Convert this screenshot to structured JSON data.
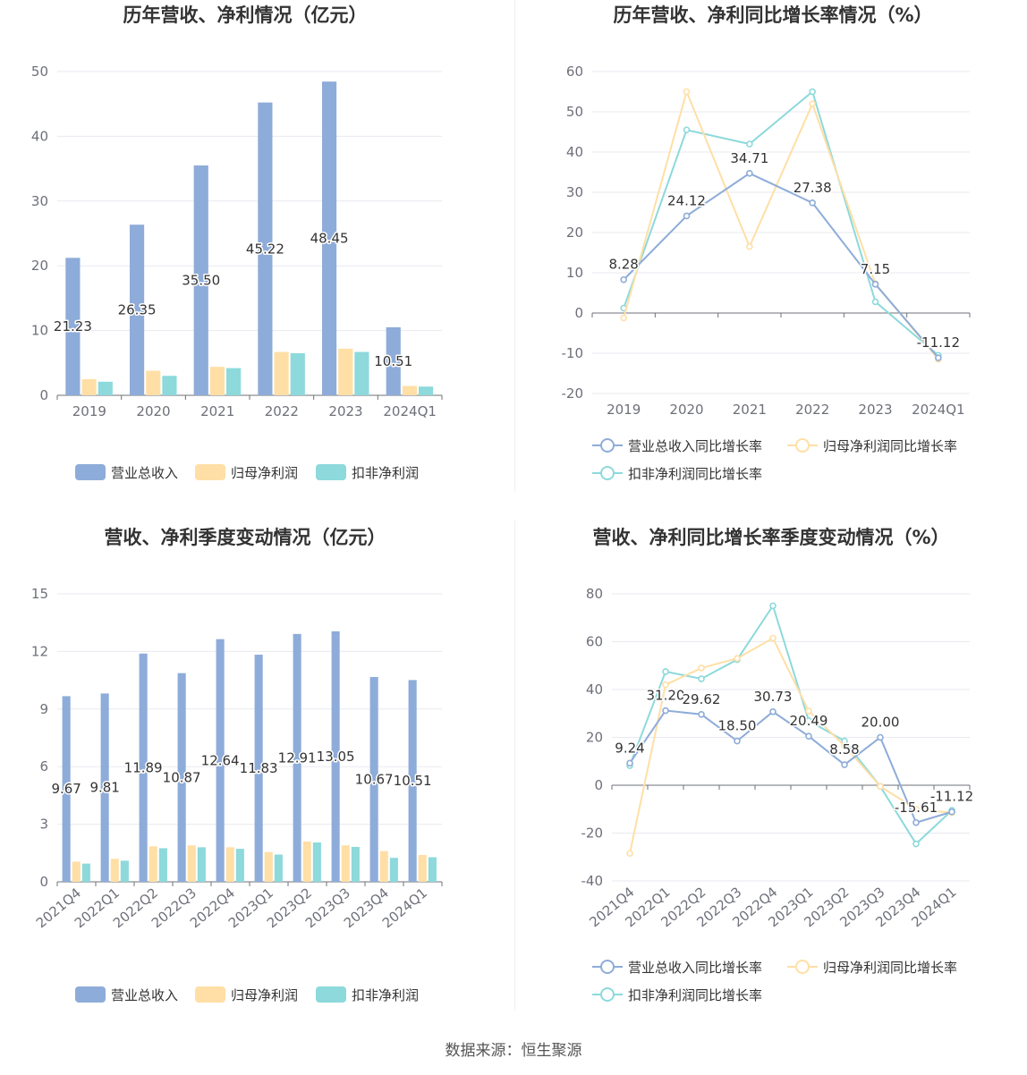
{
  "source": "数据来源：恒生聚源",
  "colors": {
    "revenue": "#8eacd9",
    "net_profit": "#ffdfa6",
    "deducted_profit": "#8dd9db",
    "axis": "#6e7079",
    "grid": "#e8eaf0"
  },
  "chart_data": [
    {
      "type": "bar",
      "title": "历年营收、净利情况（亿元）",
      "categories": [
        "2019",
        "2020",
        "2021",
        "2022",
        "2023",
        "2024Q1"
      ],
      "ylim": [
        0,
        50
      ],
      "yticks": [
        0,
        10,
        20,
        30,
        40,
        50
      ],
      "series": [
        {
          "name": "营业总收入",
          "values": [
            21.23,
            26.35,
            35.5,
            45.22,
            48.45,
            10.51
          ],
          "labels": [
            "21.23",
            "26.35",
            "35.50",
            "45.22",
            "48.45",
            "10.51"
          ]
        },
        {
          "name": "归母净利润",
          "values": [
            2.5,
            3.8,
            4.4,
            6.7,
            7.2,
            1.45
          ]
        },
        {
          "name": "扣非净利润",
          "values": [
            2.1,
            3.0,
            4.2,
            6.5,
            6.7,
            1.35
          ]
        }
      ],
      "legend": "bottom"
    },
    {
      "type": "line",
      "title": "历年营收、净利同比增长率情况（%）",
      "categories": [
        "2019",
        "2020",
        "2021",
        "2022",
        "2023",
        "2024Q1"
      ],
      "ylim": [
        -20,
        60
      ],
      "yticks": [
        -20,
        -10,
        0,
        10,
        20,
        30,
        40,
        50,
        60
      ],
      "series": [
        {
          "name": "营业总收入同比增长率",
          "values": [
            8.28,
            24.12,
            34.71,
            27.38,
            7.15,
            -11.12
          ],
          "labels": [
            "8.28",
            "24.12",
            "34.71",
            "27.38",
            "7.15",
            "-11.12"
          ]
        },
        {
          "name": "归母净利润同比增长率",
          "values": [
            -1.2,
            55,
            16.5,
            52,
            7.3,
            -11.5
          ]
        },
        {
          "name": "扣非净利润同比增长率",
          "values": [
            1.2,
            45.5,
            42,
            55,
            2.8,
            -10.5
          ]
        }
      ],
      "legend": "bottom"
    },
    {
      "type": "bar",
      "title": "营收、净利季度变动情况（亿元）",
      "categories": [
        "2021Q4",
        "2022Q1",
        "2022Q2",
        "2022Q3",
        "2022Q4",
        "2023Q1",
        "2023Q2",
        "2023Q3",
        "2023Q4",
        "2024Q1"
      ],
      "ylim": [
        0,
        15
      ],
      "yticks": [
        0,
        3,
        6,
        9,
        12,
        15
      ],
      "series": [
        {
          "name": "营业总收入",
          "values": [
            9.67,
            9.81,
            11.89,
            10.87,
            12.64,
            11.83,
            12.91,
            13.05,
            10.67,
            10.51
          ],
          "labels": [
            "9.67",
            "9.81",
            "11.89",
            "10.87",
            "12.64",
            "11.83",
            "12.91",
            "13.05",
            "10.67",
            "10.51"
          ]
        },
        {
          "name": "归母净利润",
          "values": [
            1.05,
            1.2,
            1.85,
            1.9,
            1.8,
            1.55,
            2.1,
            1.9,
            1.6,
            1.4
          ]
        },
        {
          "name": "扣非净利润",
          "values": [
            0.95,
            1.1,
            1.75,
            1.8,
            1.72,
            1.42,
            2.05,
            1.82,
            1.25,
            1.28
          ]
        }
      ],
      "legend": "bottom"
    },
    {
      "type": "line",
      "title": "营收、净利同比增长率季度变动情况（%）",
      "categories": [
        "2021Q4",
        "2022Q1",
        "2022Q2",
        "2022Q3",
        "2022Q4",
        "2023Q1",
        "2023Q2",
        "2023Q3",
        "2023Q4",
        "2024Q1"
      ],
      "ylim": [
        -40,
        80
      ],
      "yticks": [
        -40,
        -20,
        0,
        20,
        40,
        60,
        80
      ],
      "series": [
        {
          "name": "营业总收入同比增长率",
          "values": [
            9.24,
            31.2,
            29.62,
            18.5,
            30.73,
            20.49,
            8.58,
            20.0,
            -15.61,
            -11.12
          ],
          "labels": [
            "9.24",
            "31.20",
            "29.62",
            "18.50",
            "30.73",
            "20.49",
            "8.58",
            "20.00",
            "-15.61",
            "-11.12"
          ]
        },
        {
          "name": "归母净利润同比增长率",
          "values": [
            -28.5,
            42,
            49,
            53,
            61.5,
            31,
            16.5,
            -0.5,
            -10,
            -11.5
          ]
        },
        {
          "name": "扣非净利润同比增长率",
          "values": [
            8.2,
            47.5,
            44.5,
            52.5,
            75,
            27,
            18.5,
            -0.5,
            -24.5,
            -10.5
          ]
        }
      ],
      "legend": "bottom"
    }
  ]
}
